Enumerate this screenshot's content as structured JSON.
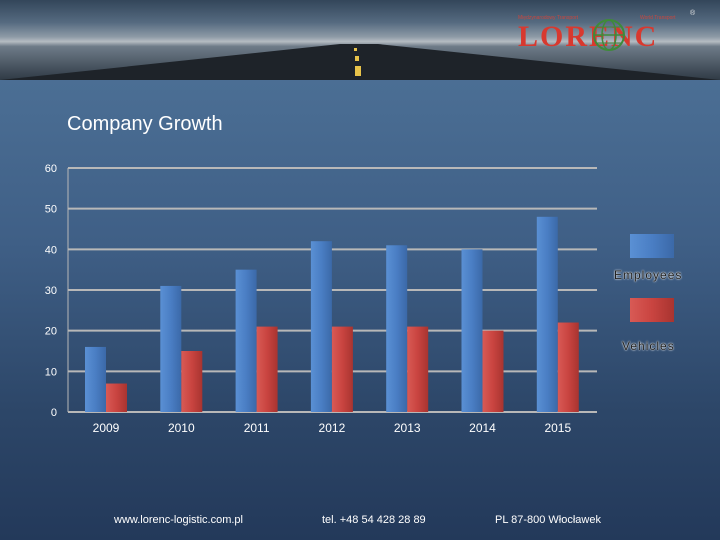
{
  "logo": {
    "left_text": "Międzynarodowy Transport",
    "right_text": "World Transport",
    "word": "LORENC",
    "reg_mark": "®"
  },
  "footer": {
    "website": "www.lorenc-logistic.com.pl",
    "phone": "tel. +48 54 428 28 89",
    "address": "PL 87-800 Włocławek"
  },
  "colors": {
    "employees": "#4a7ec4",
    "vehicles": "#c94440",
    "grid": "#b8b8b8"
  },
  "chart_data": {
    "type": "bar",
    "title": "Company Growth",
    "categories": [
      "2009",
      "2010",
      "2011",
      "2012",
      "2013",
      "2014",
      "2015"
    ],
    "series": [
      {
        "name": "Employees",
        "values": [
          16,
          31,
          35,
          42,
          41,
          40,
          48
        ]
      },
      {
        "name": "Vehicles",
        "values": [
          7,
          15,
          21,
          21,
          21,
          20,
          22
        ]
      }
    ],
    "ylim": [
      0,
      60
    ],
    "yticks": [
      0,
      10,
      20,
      30,
      40,
      50,
      60
    ],
    "grid": true,
    "legend_position": "right"
  }
}
